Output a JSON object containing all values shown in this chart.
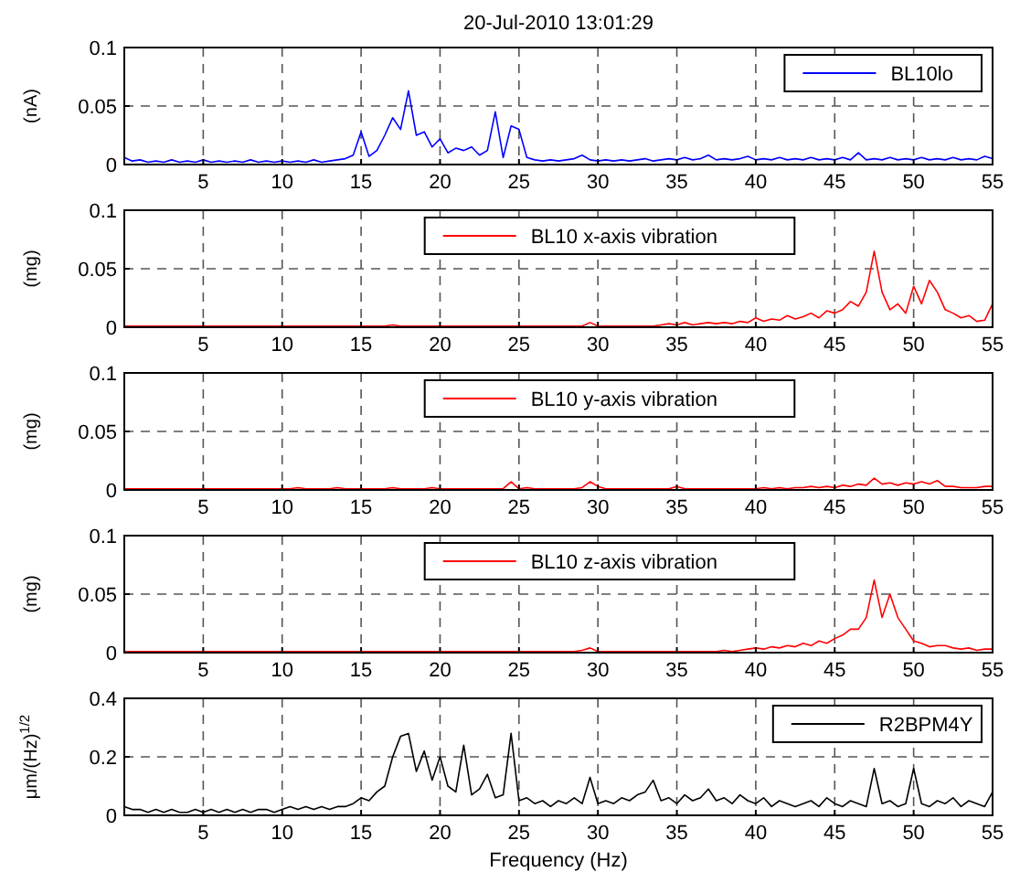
{
  "chart_data": [
    {
      "type": "line",
      "title": "20-Jul-2010 13:01:29",
      "ylabel": "(nA)",
      "xlim": [
        0,
        55
      ],
      "xticks": [
        5,
        10,
        15,
        20,
        25,
        30,
        35,
        40,
        45,
        50,
        55
      ],
      "ylim": [
        0,
        0.1
      ],
      "yticks": [
        0,
        0.05,
        0.1
      ],
      "grid": true,
      "legend": "top right",
      "x": [
        0,
        0.5,
        1,
        1.5,
        2,
        2.5,
        3,
        3.5,
        4,
        4.5,
        5,
        5.5,
        6,
        6.5,
        7,
        7.5,
        8,
        8.5,
        9,
        9.5,
        10,
        10.5,
        11,
        11.5,
        12,
        12.5,
        13,
        13.5,
        14,
        14.5,
        15,
        15.5,
        16,
        16.5,
        17,
        17.5,
        18,
        18.5,
        19,
        19.5,
        20,
        20.5,
        21,
        21.5,
        22,
        22.5,
        23,
        23.5,
        24,
        24.5,
        25,
        25.5,
        26,
        26.5,
        27,
        27.5,
        28,
        28.5,
        29,
        29.5,
        30,
        30.5,
        31,
        31.5,
        32,
        32.5,
        33,
        33.5,
        34,
        34.5,
        35,
        35.5,
        36,
        36.5,
        37,
        37.5,
        38,
        38.5,
        39,
        39.5,
        40,
        40.5,
        41,
        41.5,
        42,
        42.5,
        43,
        43.5,
        44,
        44.5,
        45,
        45.5,
        46,
        46.5,
        47,
        47.5,
        48,
        48.5,
        49,
        49.5,
        50,
        50.5,
        51,
        51.5,
        52,
        52.5,
        53,
        53.5,
        54,
        54.5,
        55
      ],
      "series": [
        {
          "name": "BL10lo",
          "color": "#0000ff",
          "values": [
            0.006,
            0.003,
            0.004,
            0.002,
            0.003,
            0.002,
            0.004,
            0.002,
            0.003,
            0.002,
            0.004,
            0.002,
            0.003,
            0.002,
            0.003,
            0.002,
            0.004,
            0.002,
            0.003,
            0.002,
            0.003,
            0.002,
            0.003,
            0.002,
            0.004,
            0.002,
            0.003,
            0.004,
            0.005,
            0.008,
            0.028,
            0.007,
            0.012,
            0.025,
            0.04,
            0.03,
            0.063,
            0.025,
            0.028,
            0.015,
            0.022,
            0.01,
            0.014,
            0.012,
            0.015,
            0.008,
            0.012,
            0.045,
            0.006,
            0.033,
            0.03,
            0.006,
            0.004,
            0.003,
            0.004,
            0.003,
            0.004,
            0.005,
            0.008,
            0.004,
            0.003,
            0.004,
            0.003,
            0.004,
            0.003,
            0.004,
            0.005,
            0.003,
            0.004,
            0.005,
            0.004,
            0.006,
            0.004,
            0.005,
            0.008,
            0.004,
            0.005,
            0.004,
            0.005,
            0.007,
            0.004,
            0.005,
            0.004,
            0.006,
            0.004,
            0.005,
            0.004,
            0.006,
            0.004,
            0.005,
            0.004,
            0.006,
            0.004,
            0.01,
            0.004,
            0.005,
            0.004,
            0.006,
            0.004,
            0.005,
            0.004,
            0.006,
            0.004,
            0.005,
            0.004,
            0.006,
            0.004,
            0.005,
            0.004,
            0.007,
            0.005
          ]
        }
      ]
    },
    {
      "type": "line",
      "ylabel": "(mg)",
      "xlim": [
        0,
        55
      ],
      "xticks": [
        5,
        10,
        15,
        20,
        25,
        30,
        35,
        40,
        45,
        50,
        55
      ],
      "ylim": [
        0,
        0.1
      ],
      "yticks": [
        0,
        0.05,
        0.1
      ],
      "grid": true,
      "legend": "top",
      "x": [
        0,
        0.5,
        1,
        1.5,
        2,
        2.5,
        3,
        3.5,
        4,
        4.5,
        5,
        5.5,
        6,
        6.5,
        7,
        7.5,
        8,
        8.5,
        9,
        9.5,
        10,
        10.5,
        11,
        11.5,
        12,
        12.5,
        13,
        13.5,
        14,
        14.5,
        15,
        15.5,
        16,
        16.5,
        17,
        17.5,
        18,
        18.5,
        19,
        19.5,
        20,
        20.5,
        21,
        21.5,
        22,
        22.5,
        23,
        23.5,
        24,
        24.5,
        25,
        25.5,
        26,
        26.5,
        27,
        27.5,
        28,
        28.5,
        29,
        29.5,
        30,
        30.5,
        31,
        31.5,
        32,
        32.5,
        33,
        33.5,
        34,
        34.5,
        35,
        35.5,
        36,
        36.5,
        37,
        37.5,
        38,
        38.5,
        39,
        39.5,
        40,
        40.5,
        41,
        41.5,
        42,
        42.5,
        43,
        43.5,
        44,
        44.5,
        45,
        45.5,
        46,
        46.5,
        47,
        47.5,
        48,
        48.5,
        49,
        49.5,
        50,
        50.5,
        51,
        51.5,
        52,
        52.5,
        53,
        53.5,
        54,
        54.5,
        55
      ],
      "series": [
        {
          "name": "BL10 x-axis vibration",
          "color": "#ff0000",
          "values": [
            0.001,
            0.001,
            0.001,
            0.001,
            0.001,
            0.001,
            0.001,
            0.001,
            0.001,
            0.001,
            0.001,
            0.001,
            0.001,
            0.001,
            0.001,
            0.001,
            0.001,
            0.001,
            0.001,
            0.001,
            0.001,
            0.001,
            0.001,
            0.001,
            0.001,
            0.001,
            0.001,
            0.001,
            0.001,
            0.001,
            0.001,
            0.001,
            0.001,
            0.001,
            0.002,
            0.001,
            0.001,
            0.001,
            0.001,
            0.001,
            0.001,
            0.001,
            0.001,
            0.001,
            0.001,
            0.001,
            0.001,
            0.001,
            0.001,
            0.001,
            0.001,
            0.001,
            0.001,
            0.001,
            0.001,
            0.001,
            0.001,
            0.001,
            0.001,
            0.004,
            0.001,
            0.001,
            0.001,
            0.001,
            0.001,
            0.001,
            0.001,
            0.001,
            0.002,
            0.003,
            0.002,
            0.004,
            0.002,
            0.003,
            0.004,
            0.003,
            0.004,
            0.003,
            0.005,
            0.004,
            0.008,
            0.005,
            0.007,
            0.006,
            0.01,
            0.007,
            0.009,
            0.012,
            0.008,
            0.014,
            0.012,
            0.015,
            0.022,
            0.018,
            0.03,
            0.065,
            0.03,
            0.015,
            0.02,
            0.012,
            0.035,
            0.02,
            0.04,
            0.03,
            0.015,
            0.012,
            0.008,
            0.01,
            0.005,
            0.006,
            0.02
          ]
        }
      ]
    },
    {
      "type": "line",
      "ylabel": "(mg)",
      "xlim": [
        0,
        55
      ],
      "xticks": [
        5,
        10,
        15,
        20,
        25,
        30,
        35,
        40,
        45,
        50,
        55
      ],
      "ylim": [
        0,
        0.1
      ],
      "yticks": [
        0,
        0.05,
        0.1
      ],
      "grid": true,
      "legend": "top",
      "x": [
        0,
        0.5,
        1,
        1.5,
        2,
        2.5,
        3,
        3.5,
        4,
        4.5,
        5,
        5.5,
        6,
        6.5,
        7,
        7.5,
        8,
        8.5,
        9,
        9.5,
        10,
        10.5,
        11,
        11.5,
        12,
        12.5,
        13,
        13.5,
        14,
        14.5,
        15,
        15.5,
        16,
        16.5,
        17,
        17.5,
        18,
        18.5,
        19,
        19.5,
        20,
        20.5,
        21,
        21.5,
        22,
        22.5,
        23,
        23.5,
        24,
        24.5,
        25,
        25.5,
        26,
        26.5,
        27,
        27.5,
        28,
        28.5,
        29,
        29.5,
        30,
        30.5,
        31,
        31.5,
        32,
        32.5,
        33,
        33.5,
        34,
        34.5,
        35,
        35.5,
        36,
        36.5,
        37,
        37.5,
        38,
        38.5,
        39,
        39.5,
        40,
        40.5,
        41,
        41.5,
        42,
        42.5,
        43,
        43.5,
        44,
        44.5,
        45,
        45.5,
        46,
        46.5,
        47,
        47.5,
        48,
        48.5,
        49,
        49.5,
        50,
        50.5,
        51,
        51.5,
        52,
        52.5,
        53,
        53.5,
        54,
        54.5,
        55
      ],
      "series": [
        {
          "name": "BL10 y-axis vibration",
          "color": "#ff0000",
          "values": [
            0.001,
            0.001,
            0.001,
            0.001,
            0.001,
            0.001,
            0.001,
            0.001,
            0.001,
            0.001,
            0.001,
            0.001,
            0.001,
            0.001,
            0.001,
            0.001,
            0.001,
            0.001,
            0.001,
            0.001,
            0.001,
            0.001,
            0.002,
            0.001,
            0.001,
            0.001,
            0.001,
            0.002,
            0.001,
            0.001,
            0.001,
            0.001,
            0.001,
            0.001,
            0.002,
            0.001,
            0.001,
            0.001,
            0.001,
            0.002,
            0.001,
            0.001,
            0.001,
            0.001,
            0.001,
            0.001,
            0.001,
            0.001,
            0.001,
            0.007,
            0.001,
            0.002,
            0.001,
            0.001,
            0.001,
            0.001,
            0.001,
            0.001,
            0.002,
            0.007,
            0.003,
            0.001,
            0.001,
            0.001,
            0.001,
            0.001,
            0.001,
            0.001,
            0.001,
            0.001,
            0.003,
            0.001,
            0.001,
            0.001,
            0.001,
            0.001,
            0.001,
            0.001,
            0.001,
            0.001,
            0.001,
            0.002,
            0.001,
            0.002,
            0.001,
            0.002,
            0.002,
            0.003,
            0.002,
            0.003,
            0.002,
            0.004,
            0.003,
            0.005,
            0.004,
            0.01,
            0.005,
            0.006,
            0.004,
            0.006,
            0.005,
            0.007,
            0.005,
            0.008,
            0.003,
            0.003,
            0.002,
            0.002,
            0.002,
            0.003,
            0.003
          ]
        }
      ]
    },
    {
      "type": "line",
      "ylabel": "(mg)",
      "xlim": [
        0,
        55
      ],
      "xticks": [
        5,
        10,
        15,
        20,
        25,
        30,
        35,
        40,
        45,
        50,
        55
      ],
      "ylim": [
        0,
        0.1
      ],
      "yticks": [
        0,
        0.05,
        0.1
      ],
      "grid": true,
      "legend": "top",
      "x": [
        0,
        0.5,
        1,
        1.5,
        2,
        2.5,
        3,
        3.5,
        4,
        4.5,
        5,
        5.5,
        6,
        6.5,
        7,
        7.5,
        8,
        8.5,
        9,
        9.5,
        10,
        10.5,
        11,
        11.5,
        12,
        12.5,
        13,
        13.5,
        14,
        14.5,
        15,
        15.5,
        16,
        16.5,
        17,
        17.5,
        18,
        18.5,
        19,
        19.5,
        20,
        20.5,
        21,
        21.5,
        22,
        22.5,
        23,
        23.5,
        24,
        24.5,
        25,
        25.5,
        26,
        26.5,
        27,
        27.5,
        28,
        28.5,
        29,
        29.5,
        30,
        30.5,
        31,
        31.5,
        32,
        32.5,
        33,
        33.5,
        34,
        34.5,
        35,
        35.5,
        36,
        36.5,
        37,
        37.5,
        38,
        38.5,
        39,
        39.5,
        40,
        40.5,
        41,
        41.5,
        42,
        42.5,
        43,
        43.5,
        44,
        44.5,
        45,
        45.5,
        46,
        46.5,
        47,
        47.5,
        48,
        48.5,
        49,
        49.5,
        50,
        50.5,
        51,
        51.5,
        52,
        52.5,
        53,
        53.5,
        54,
        54.5,
        55
      ],
      "series": [
        {
          "name": "BL10 z-axis vibration",
          "color": "#ff0000",
          "values": [
            0.001,
            0.001,
            0.001,
            0.001,
            0.001,
            0.001,
            0.001,
            0.001,
            0.001,
            0.001,
            0.001,
            0.001,
            0.001,
            0.001,
            0.001,
            0.001,
            0.001,
            0.001,
            0.001,
            0.001,
            0.001,
            0.001,
            0.001,
            0.001,
            0.001,
            0.001,
            0.001,
            0.001,
            0.001,
            0.001,
            0.001,
            0.001,
            0.001,
            0.001,
            0.001,
            0.001,
            0.001,
            0.001,
            0.001,
            0.001,
            0.001,
            0.001,
            0.001,
            0.001,
            0.001,
            0.001,
            0.001,
            0.001,
            0.001,
            0.001,
            0.001,
            0.001,
            0.001,
            0.001,
            0.001,
            0.001,
            0.001,
            0.001,
            0.002,
            0.004,
            0.001,
            0.001,
            0.001,
            0.001,
            0.001,
            0.001,
            0.001,
            0.001,
            0.001,
            0.001,
            0.001,
            0.001,
            0.001,
            0.001,
            0.001,
            0.001,
            0.002,
            0.001,
            0.002,
            0.003,
            0.004,
            0.003,
            0.005,
            0.004,
            0.006,
            0.005,
            0.008,
            0.006,
            0.01,
            0.008,
            0.012,
            0.015,
            0.02,
            0.02,
            0.03,
            0.062,
            0.03,
            0.05,
            0.03,
            0.02,
            0.01,
            0.008,
            0.005,
            0.006,
            0.006,
            0.004,
            0.003,
            0.004,
            0.002,
            0.003,
            0.003
          ]
        }
      ]
    },
    {
      "type": "line",
      "ylabel": "μm/(Hz)$^{1/2}$",
      "xlabel": "Frequency (Hz)",
      "xlim": [
        0,
        55
      ],
      "xticks": [
        5,
        10,
        15,
        20,
        25,
        30,
        35,
        40,
        45,
        50,
        55
      ],
      "ylim": [
        0,
        0.4
      ],
      "yticks": [
        0,
        0.2,
        0.4
      ],
      "grid": true,
      "legend": "top right",
      "x": [
        0,
        0.5,
        1,
        1.5,
        2,
        2.5,
        3,
        3.5,
        4,
        4.5,
        5,
        5.5,
        6,
        6.5,
        7,
        7.5,
        8,
        8.5,
        9,
        9.5,
        10,
        10.5,
        11,
        11.5,
        12,
        12.5,
        13,
        13.5,
        14,
        14.5,
        15,
        15.5,
        16,
        16.5,
        17,
        17.5,
        18,
        18.5,
        19,
        19.5,
        20,
        20.5,
        21,
        21.5,
        22,
        22.5,
        23,
        23.5,
        24,
        24.5,
        25,
        25.5,
        26,
        26.5,
        27,
        27.5,
        28,
        28.5,
        29,
        29.5,
        30,
        30.5,
        31,
        31.5,
        32,
        32.5,
        33,
        33.5,
        34,
        34.5,
        35,
        35.5,
        36,
        36.5,
        37,
        37.5,
        38,
        38.5,
        39,
        39.5,
        40,
        40.5,
        41,
        41.5,
        42,
        42.5,
        43,
        43.5,
        44,
        44.5,
        45,
        45.5,
        46,
        46.5,
        47,
        47.5,
        48,
        48.5,
        49,
        49.5,
        50,
        50.5,
        51,
        51.5,
        52,
        52.5,
        53,
        53.5,
        54,
        54.5,
        55
      ],
      "series": [
        {
          "name": "R2BPM4Y",
          "color": "#000000",
          "values": [
            0.03,
            0.02,
            0.02,
            0.01,
            0.02,
            0.01,
            0.02,
            0.01,
            0.01,
            0.02,
            0.01,
            0.02,
            0.01,
            0.02,
            0.01,
            0.02,
            0.01,
            0.02,
            0.02,
            0.01,
            0.02,
            0.03,
            0.02,
            0.03,
            0.02,
            0.03,
            0.02,
            0.03,
            0.03,
            0.04,
            0.06,
            0.05,
            0.08,
            0.1,
            0.2,
            0.27,
            0.28,
            0.15,
            0.22,
            0.12,
            0.2,
            0.1,
            0.08,
            0.24,
            0.07,
            0.09,
            0.14,
            0.06,
            0.07,
            0.28,
            0.05,
            0.06,
            0.04,
            0.05,
            0.03,
            0.05,
            0.04,
            0.06,
            0.04,
            0.13,
            0.04,
            0.05,
            0.04,
            0.06,
            0.05,
            0.07,
            0.08,
            0.12,
            0.05,
            0.06,
            0.04,
            0.07,
            0.05,
            0.06,
            0.09,
            0.05,
            0.06,
            0.04,
            0.07,
            0.05,
            0.04,
            0.06,
            0.03,
            0.05,
            0.04,
            0.03,
            0.04,
            0.05,
            0.03,
            0.06,
            0.04,
            0.03,
            0.05,
            0.04,
            0.03,
            0.16,
            0.04,
            0.05,
            0.03,
            0.04,
            0.16,
            0.04,
            0.03,
            0.05,
            0.04,
            0.06,
            0.03,
            0.05,
            0.04,
            0.03,
            0.08
          ]
        }
      ]
    }
  ]
}
